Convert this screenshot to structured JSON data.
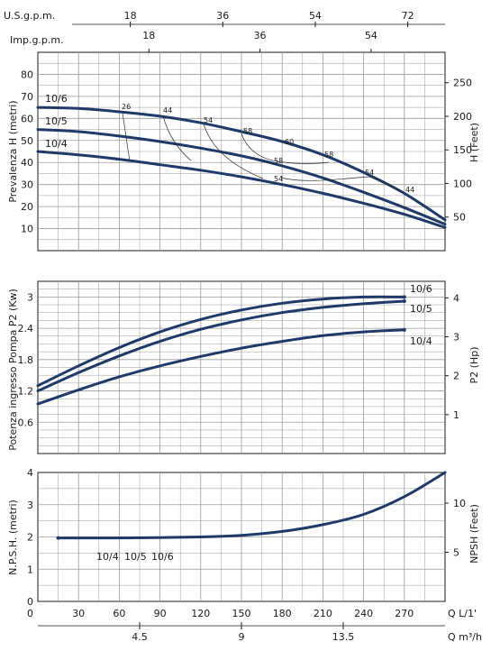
{
  "chart_data": [
    {
      "type": "line",
      "title": "",
      "ylabel": "Prevalenza H (metri)",
      "y2label": "H (Feet)",
      "ylim": [
        0,
        90
      ],
      "yticks": [
        "10",
        "20",
        "30",
        "40",
        "50",
        "60",
        "70",
        "80"
      ],
      "y2ticks": [
        "50",
        "100",
        "150",
        "200",
        "250"
      ],
      "top_axes": [
        {
          "label": "U.S.g.p.m.",
          "ticks": [
            "18",
            "36",
            "54",
            "72"
          ]
        },
        {
          "label": "Imp.g.p.m.",
          "ticks": [
            "18",
            "36",
            "54"
          ]
        }
      ],
      "xlim": [
        0,
        300
      ],
      "series": [
        {
          "name": "10/6",
          "x": [
            0,
            30,
            60,
            90,
            120,
            150,
            180,
            210,
            240,
            270,
            300
          ],
          "y": [
            65,
            64.5,
            63,
            61,
            58,
            54,
            49.5,
            43.5,
            35.5,
            26,
            14
          ]
        },
        {
          "name": "10/5",
          "x": [
            0,
            30,
            60,
            90,
            120,
            150,
            180,
            210,
            240,
            270,
            300
          ],
          "y": [
            55,
            54,
            52,
            49.5,
            46.5,
            43,
            38.5,
            33,
            26.5,
            19.5,
            12
          ]
        },
        {
          "name": "10/4",
          "x": [
            0,
            30,
            60,
            90,
            120,
            150,
            180,
            210,
            240,
            270,
            300
          ],
          "y": [
            45,
            43.5,
            41.5,
            39,
            36.5,
            33.5,
            30,
            26,
            21.5,
            16.5,
            10.5
          ]
        }
      ],
      "efficiency_labels": [
        "26",
        "44",
        "54",
        "58",
        "60",
        "58",
        "54",
        "44"
      ]
    },
    {
      "type": "line",
      "title": "",
      "ylabel": "Potenza ingresso Pompa P2 (Kw)",
      "y2label": "P2 (Hp)",
      "ylim": [
        0,
        3.3
      ],
      "yticks": [
        "0.6",
        "1.2",
        "1.8",
        "2.4",
        "3"
      ],
      "y2ticks": [
        "1",
        "2",
        "3",
        "4"
      ],
      "xlim": [
        0,
        300
      ],
      "series": [
        {
          "name": "10/6",
          "x": [
            0,
            30,
            60,
            90,
            120,
            150,
            180,
            210,
            240,
            270
          ],
          "y": [
            1.3,
            1.68,
            2.03,
            2.33,
            2.57,
            2.75,
            2.88,
            2.96,
            3.0,
            3.0
          ]
        },
        {
          "name": "10/5",
          "x": [
            0,
            30,
            60,
            90,
            120,
            150,
            180,
            210,
            240,
            270
          ],
          "y": [
            1.2,
            1.55,
            1.87,
            2.15,
            2.38,
            2.56,
            2.7,
            2.8,
            2.87,
            2.92
          ]
        },
        {
          "name": "10/4",
          "x": [
            0,
            30,
            60,
            90,
            120,
            150,
            180,
            210,
            240,
            270
          ],
          "y": [
            0.95,
            1.22,
            1.47,
            1.68,
            1.86,
            2.02,
            2.15,
            2.26,
            2.33,
            2.37
          ]
        }
      ]
    },
    {
      "type": "line",
      "title": "",
      "ylabel": "N.P.S.H. (metri)",
      "y2label": "NPSH (Feet)",
      "ylim": [
        0,
        4
      ],
      "yticks": [
        "0",
        "1",
        "2",
        "3",
        "4"
      ],
      "y2ticks": [
        "5",
        "10"
      ],
      "xlabel": "Q L/1'",
      "xticks": [
        "30",
        "60",
        "90",
        "120",
        "150",
        "180",
        "210",
        "240",
        "270"
      ],
      "x2label": "Q m³/h",
      "x2ticks": [
        "4.5",
        "9",
        "13.5"
      ],
      "xlim": [
        0,
        300
      ],
      "series": [
        {
          "name": "10/4  10/5  10/6",
          "x": [
            15,
            60,
            120,
            150,
            180,
            210,
            240,
            270,
            300
          ],
          "y": [
            1.97,
            1.97,
            2.0,
            2.05,
            2.17,
            2.38,
            2.7,
            3.25,
            4.0
          ]
        }
      ]
    }
  ]
}
